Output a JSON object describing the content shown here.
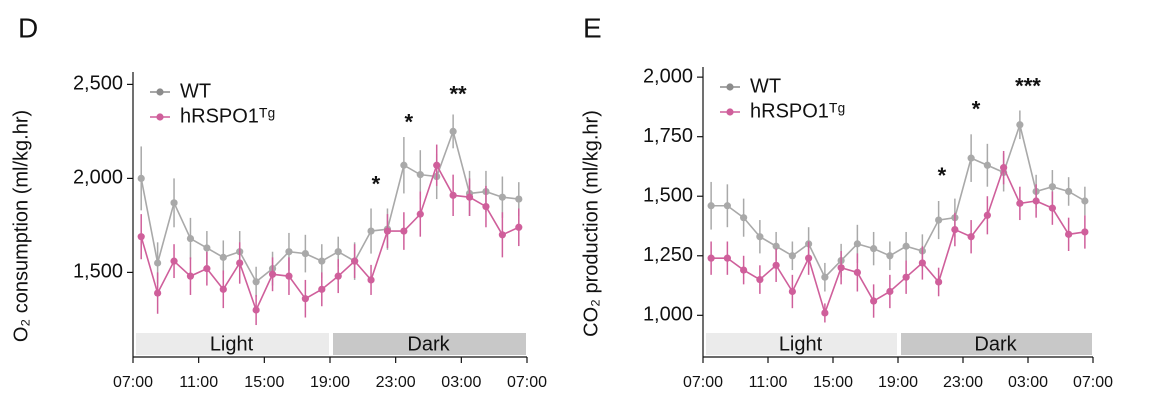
{
  "chart_data": [
    {
      "type": "line",
      "panel": "D",
      "y_label": "O₂ consumption (ml/kg.hr)",
      "x": [
        0.5,
        1.5,
        2.5,
        3.5,
        4.5,
        5.5,
        6.5,
        7.5,
        8.5,
        9.5,
        10.5,
        11.5,
        12.5,
        13.5,
        14.5,
        15.5,
        16.5,
        17.5,
        18.5,
        19.5,
        20.5,
        21.5,
        22.5,
        23.5
      ],
      "xlim": [
        0,
        24
      ],
      "xticks": [
        {
          "value": 0,
          "label": "07:00"
        },
        {
          "value": 4,
          "label": "11:00"
        },
        {
          "value": 8,
          "label": "15:00"
        },
        {
          "value": 12,
          "label": "19:00"
        },
        {
          "value": 16,
          "label": "23:00"
        },
        {
          "value": 20,
          "label": "03:00"
        },
        {
          "value": 24,
          "label": "07:00"
        }
      ],
      "ylim": [
        1050,
        2550
      ],
      "yticks": [
        {
          "value": 1500,
          "label": "1,500"
        },
        {
          "value": 2000,
          "label": "2,000"
        },
        {
          "value": 2500,
          "label": "2,500"
        }
      ],
      "periods": [
        {
          "label": "Light",
          "start": 0,
          "end": 12
        },
        {
          "label": "Dark",
          "start": 12,
          "end": 24
        }
      ],
      "annotations": [
        {
          "text": "*",
          "x": 14.8,
          "y": 1960
        },
        {
          "text": "*",
          "x": 16.8,
          "y": 2290
        },
        {
          "text": "**",
          "x": 19.8,
          "y": 2440
        }
      ],
      "legend": "upper left",
      "series": [
        {
          "name": "WT",
          "color": "#a9a9a9",
          "marker_color": "#8c8c8c",
          "values": [
            2000,
            1550,
            1870,
            1680,
            1630,
            1580,
            1610,
            1450,
            1520,
            1610,
            1600,
            1560,
            1610,
            1560,
            1720,
            1730,
            2070,
            2020,
            2010,
            2250,
            1920,
            1930,
            1900,
            1890
          ],
          "errors": [
            170,
            110,
            130,
            110,
            90,
            90,
            110,
            80,
            90,
            100,
            100,
            90,
            80,
            100,
            120,
            110,
            150,
            130,
            120,
            90,
            120,
            110,
            110,
            90
          ]
        },
        {
          "name": "hRSPO1ᵀᵍ",
          "color": "#cf5f9b",
          "marker_color": "#cf5f9b",
          "values": [
            1690,
            1390,
            1560,
            1480,
            1520,
            1410,
            1550,
            1300,
            1490,
            1480,
            1360,
            1410,
            1480,
            1560,
            1460,
            1720,
            1720,
            1810,
            2070,
            1910,
            1900,
            1850,
            1700,
            1740
          ],
          "errors": [
            120,
            110,
            90,
            100,
            90,
            100,
            110,
            80,
            90,
            100,
            100,
            90,
            90,
            90,
            80,
            90,
            100,
            120,
            110,
            110,
            100,
            110,
            120,
            100
          ]
        }
      ]
    },
    {
      "type": "line",
      "panel": "E",
      "y_label": "CO₂ production (ml/kg.hr)",
      "x": [
        0.5,
        1.5,
        2.5,
        3.5,
        4.5,
        5.5,
        6.5,
        7.5,
        8.5,
        9.5,
        10.5,
        11.5,
        12.5,
        13.5,
        14.5,
        15.5,
        16.5,
        17.5,
        18.5,
        19.5,
        20.5,
        21.5,
        22.5,
        23.5
      ],
      "xlim": [
        0,
        24
      ],
      "xticks": [
        {
          "value": 0,
          "label": "07:00"
        },
        {
          "value": 4,
          "label": "11:00"
        },
        {
          "value": 8,
          "label": "15:00"
        },
        {
          "value": 12,
          "label": "19:00"
        },
        {
          "value": 16,
          "label": "23:00"
        },
        {
          "value": 20,
          "label": "03:00"
        },
        {
          "value": 24,
          "label": "07:00"
        }
      ],
      "ylim": [
        825,
        2030
      ],
      "yticks": [
        {
          "value": 1000,
          "label": "1,000"
        },
        {
          "value": 1250,
          "label": "1,250"
        },
        {
          "value": 1500,
          "label": "1,500"
        },
        {
          "value": 1750,
          "label": "1,750"
        },
        {
          "value": 2000,
          "label": "2,000"
        }
      ],
      "periods": [
        {
          "label": "Light",
          "start": 0,
          "end": 12
        },
        {
          "label": "Dark",
          "start": 12,
          "end": 24
        }
      ],
      "annotations": [
        {
          "text": "*",
          "x": 14.7,
          "y": 1580
        },
        {
          "text": "*",
          "x": 16.8,
          "y": 1860
        },
        {
          "text": "***",
          "x": 20,
          "y": 1955
        }
      ],
      "legend": "upper left",
      "series": [
        {
          "name": "WT",
          "color": "#a9a9a9",
          "marker_color": "#8c8c8c",
          "values": [
            1460,
            1460,
            1410,
            1330,
            1290,
            1250,
            1300,
            1160,
            1230,
            1300,
            1280,
            1250,
            1290,
            1270,
            1400,
            1410,
            1660,
            1630,
            1600,
            1800,
            1520,
            1540,
            1520,
            1480
          ],
          "errors": [
            100,
            90,
            80,
            70,
            60,
            60,
            70,
            60,
            70,
            80,
            70,
            60,
            60,
            70,
            80,
            80,
            100,
            90,
            80,
            60,
            70,
            70,
            60,
            60
          ]
        },
        {
          "name": "hRSPO1ᵀᵍ",
          "color": "#cf5f9b",
          "marker_color": "#cf5f9b",
          "values": [
            1240,
            1240,
            1190,
            1150,
            1210,
            1100,
            1240,
            1010,
            1200,
            1180,
            1060,
            1100,
            1160,
            1220,
            1140,
            1360,
            1330,
            1420,
            1620,
            1470,
            1480,
            1450,
            1340,
            1350
          ],
          "errors": [
            70,
            70,
            60,
            60,
            70,
            70,
            70,
            40,
            70,
            80,
            70,
            70,
            70,
            70,
            60,
            70,
            70,
            80,
            70,
            70,
            70,
            70,
            70,
            70
          ]
        }
      ]
    }
  ]
}
